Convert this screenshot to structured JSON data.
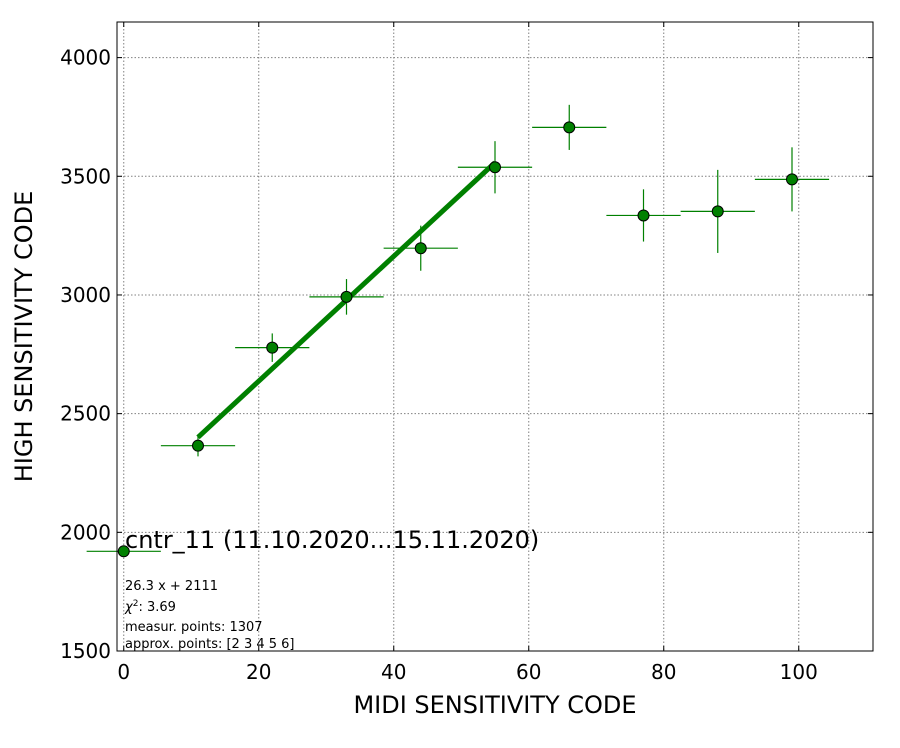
{
  "chart_data": {
    "type": "scatter",
    "title": "",
    "xlabel": "MIDI SENSITIVITY CODE",
    "ylabel": "HIGH SENSITIVITY CODE",
    "xlim": [
      -1,
      111
    ],
    "ylim": [
      1500,
      4150
    ],
    "xticks": [
      0,
      20,
      40,
      60,
      80,
      100
    ],
    "yticks": [
      1500,
      2000,
      2500,
      3000,
      3500,
      4000
    ],
    "grid": true,
    "colors": {
      "points": "#008000",
      "edge": "#000000",
      "fit": "#008000",
      "grid": "#808080"
    },
    "points": [
      {
        "x": 0,
        "y": 1920,
        "xerr": 5.5,
        "yerr": 0
      },
      {
        "x": 11,
        "y": 2365,
        "xerr": 5.5,
        "yerr": 45
      },
      {
        "x": 22,
        "y": 2778,
        "xerr": 5.5,
        "yerr": 60
      },
      {
        "x": 33,
        "y": 2992,
        "xerr": 5.5,
        "yerr": 75
      },
      {
        "x": 44,
        "y": 3197,
        "xerr": 5.5,
        "yerr": 95
      },
      {
        "x": 55,
        "y": 3538,
        "xerr": 5.5,
        "yerr": 110
      },
      {
        "x": 66,
        "y": 3706,
        "xerr": 5.5,
        "yerr": 95
      },
      {
        "x": 77,
        "y": 3335,
        "xerr": 5.5,
        "yerr": 110
      },
      {
        "x": 88,
        "y": 3352,
        "xerr": 5.5,
        "yerr": 175
      },
      {
        "x": 99,
        "y": 3487,
        "xerr": 5.5,
        "yerr": 135
      }
    ],
    "fit": {
      "slope": 26.3,
      "intercept": 2111,
      "x_from": 11,
      "x_to": 55
    },
    "label": "cntr_11 (11.10.2020...15.11.2020)",
    "annotations": {
      "equation": "26.3 x + 2111",
      "chi2_symbol": "χ",
      "chi2_value": ": 3.69",
      "measured": "measur. points: 1307",
      "approx": "approx. points: [2 3 4 5 6]"
    }
  }
}
